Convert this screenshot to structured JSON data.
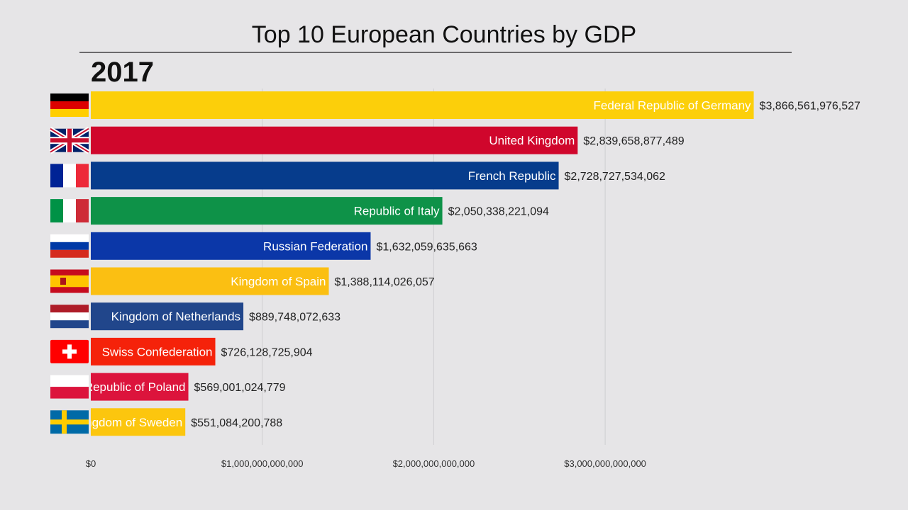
{
  "chart_data": {
    "type": "bar",
    "orientation": "horizontal",
    "title": "Top 10 European Countries by GDP",
    "period": "2017",
    "categories": [
      "Federal Republic of Germany",
      "United Kingdom",
      "French Republic",
      "Republic of Italy",
      "Russian Federation",
      "Kingdom of Spain",
      "Kingdom of Netherlands",
      "Swiss Confederation",
      "Republic of Poland",
      "Kingdom of Sweden"
    ],
    "values": [
      3866561976527,
      2839658877489,
      2728727534062,
      2050338221094,
      1632059635663,
      1388114026057,
      889748072633,
      726128725904,
      569001024779,
      551084200788
    ],
    "value_labels": [
      "$3,866,561,976,527",
      "$2,839,658,877,489",
      "$2,728,727,534,062",
      "$2,050,338,221,094",
      "$1,632,059,635,663",
      "$1,388,114,026,057",
      "$889,748,072,633",
      "$726,128,725,904",
      "$569,001,024,779",
      "$551,084,200,788"
    ],
    "colors": [
      "#fccf0a",
      "#d0062c",
      "#063c8c",
      "#0e9248",
      "#0b37a8",
      "#fbbf12",
      "#21468b",
      "#f5220a",
      "#dc143c",
      "#fcc60e"
    ],
    "flags": [
      "germany-flag",
      "uk-flag",
      "france-flag",
      "italy-flag",
      "russia-flag",
      "spain-flag",
      "netherlands-flag",
      "switzerland-flag",
      "poland-flag",
      "sweden-flag"
    ],
    "xlim": [
      0,
      4000000000000
    ],
    "xticks": [
      0,
      1000000000000,
      2000000000000,
      3000000000000
    ],
    "xtick_labels": [
      "$0",
      "$1,000,000,000,000",
      "$2,000,000,000,000",
      "$3,000,000,000,000"
    ],
    "grid": true,
    "xlabel": "",
    "ylabel": ""
  }
}
